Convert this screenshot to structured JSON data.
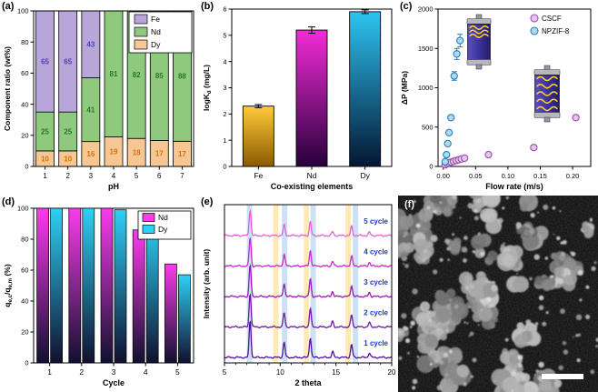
{
  "figure": {
    "background": "#ffffff"
  },
  "panels": {
    "a": {
      "label": "(a)"
    },
    "b": {
      "label": "(b)"
    },
    "c": {
      "label": "(c)"
    },
    "d": {
      "label": "(d)"
    },
    "e": {
      "label": "(e)"
    },
    "f": {
      "label": "(f)"
    }
  },
  "chart_data": [
    {
      "id": "a",
      "type": "bar",
      "stacked": true,
      "xlabel": "pH",
      "ylabel": "Component ratio (wt%)",
      "ylim": [
        0,
        100
      ],
      "yticks": [
        0,
        20,
        40,
        60,
        80,
        100
      ],
      "categories": [
        "1",
        "2",
        "3",
        "4",
        "5",
        "6",
        "7"
      ],
      "series": [
        {
          "name": "Dy",
          "color": "#F6C693",
          "label_color": "#D8720A",
          "values": [
            10,
            10,
            16,
            19,
            18,
            17,
            17
          ]
        },
        {
          "name": "Nd",
          "color": "#8FC97E",
          "label_color": "#267A26",
          "values": [
            25,
            25,
            41,
            81,
            82,
            85,
            88
          ]
        },
        {
          "name": "Fe",
          "color": "#B8A6D9",
          "label_color": "#4A3FC2",
          "values": [
            65,
            65,
            43,
            0,
            0,
            0,
            0
          ]
        }
      ],
      "legend_order": [
        "Fe",
        "Nd",
        "Dy"
      ],
      "legend_position": "top-right"
    },
    {
      "id": "b",
      "type": "bar",
      "xlabel": "Co-existing elements",
      "ylabel": "logK_{d} (mg/L)",
      "ylim": [
        0,
        6
      ],
      "yticks": [
        0,
        1,
        2,
        3,
        4,
        5,
        6
      ],
      "categories": [
        "Fe",
        "Nd",
        "Dy"
      ],
      "values": [
        2.3,
        5.2,
        5.9
      ],
      "errors": [
        0.06,
        0.12,
        0.07
      ],
      "bar_colors": [
        {
          "top": "#FFCB3A",
          "bottom": "#8A5A00"
        },
        {
          "top": "#F32BD8",
          "bottom": "#27003A"
        },
        {
          "top": "#2EC4F2",
          "bottom": "#041633"
        }
      ]
    },
    {
      "id": "c",
      "type": "scatter",
      "xlabel": "Flow rate (m/s)",
      "ylabel": "ΔP (MPa)",
      "xlim": [
        -0.008,
        0.228
      ],
      "ylim": [
        0,
        2000
      ],
      "xticks": [
        "0.00",
        "0.05",
        "0.10",
        "0.15",
        "0.20"
      ],
      "yticks": [
        0,
        500,
        1000,
        1500,
        2000
      ],
      "legend_position": "top-right",
      "series": [
        {
          "name": "CSCF",
          "fill": "#E7C6EC",
          "edge": "#9C4DAE",
          "points": [
            [
              0.003,
              20
            ],
            [
              0.006,
              35
            ],
            [
              0.009,
              45
            ],
            [
              0.012,
              55
            ],
            [
              0.016,
              65
            ],
            [
              0.02,
              75
            ],
            [
              0.024,
              85
            ],
            [
              0.028,
              95
            ],
            [
              0.033,
              105
            ],
            [
              0.07,
              150
            ],
            [
              0.14,
              240
            ],
            [
              0.205,
              620
            ]
          ]
        },
        {
          "name": "NPZIF-8",
          "fill": "#AFD9EF",
          "edge": "#2C7FB8",
          "points": [
            [
              0.003,
              60
            ],
            [
              0.005,
              150
            ],
            [
              0.007,
              290
            ],
            [
              0.009,
              430
            ],
            [
              0.012,
              620
            ],
            [
              0.017,
              1150
            ],
            [
              0.021,
              1430
            ],
            [
              0.026,
              1600
            ]
          ],
          "errors": [
            0,
            0,
            0,
            0,
            30,
            55,
            70,
            80
          ]
        }
      ]
    },
    {
      "id": "d",
      "type": "bar",
      "grouped": true,
      "xlabel": "Cycle",
      "ylabel": "q_{e,c}/q_{e,m} (%)",
      "ylim": [
        0,
        100
      ],
      "yticks": [
        0,
        20,
        40,
        60,
        80,
        100
      ],
      "categories": [
        "1",
        "2",
        "3",
        "4",
        "5"
      ],
      "series": [
        {
          "name": "Nd",
          "top": "#FA3CEB",
          "bottom": "#10102E",
          "values": [
            100,
            100,
            100,
            86,
            64
          ]
        },
        {
          "name": "Dy",
          "top": "#2ED0F5",
          "bottom": "#10102E",
          "values": [
            100,
            100,
            99,
            91,
            57
          ]
        }
      ],
      "legend_position": "top-right"
    },
    {
      "id": "e",
      "type": "line",
      "xlabel": "2 theta",
      "ylabel": "Intensity (arb. unit)",
      "xlim": [
        5,
        20
      ],
      "xticks": [
        5,
        10,
        15,
        20
      ],
      "curves": [
        {
          "name": "1 cycle",
          "color": "#52109E",
          "scale": 1.0
        },
        {
          "name": "2 cycle",
          "color": "#7614AE",
          "scale": 0.93
        },
        {
          "name": "3 cycle",
          "color": "#9A18B8",
          "scale": 0.87
        },
        {
          "name": "4 cycle",
          "color": "#C52BCB",
          "scale": 0.78
        },
        {
          "name": "5 cycle",
          "color": "#E55FD8",
          "scale": 0.7
        }
      ],
      "peaks": {
        "positions": [
          7.3,
          10.35,
          12.7,
          14.7,
          16.4,
          18.0
        ],
        "rel_heights": [
          1.0,
          0.42,
          0.55,
          0.16,
          0.36,
          0.13
        ]
      },
      "bands": [
        {
          "x": 7.25,
          "color": "#A3CBE8"
        },
        {
          "x": 9.6,
          "color": "#FFD97A"
        },
        {
          "x": 10.4,
          "color": "#A3CBE8"
        },
        {
          "x": 12.35,
          "color": "#FFD97A"
        },
        {
          "x": 12.95,
          "color": "#A3CBE8"
        },
        {
          "x": 16.1,
          "color": "#FFD97A"
        },
        {
          "x": 16.75,
          "color": "#A3CBE8"
        }
      ],
      "curve_label_color": "#1C39CB"
    }
  ],
  "sem": {
    "label": "(f)",
    "scale_bar": true
  }
}
